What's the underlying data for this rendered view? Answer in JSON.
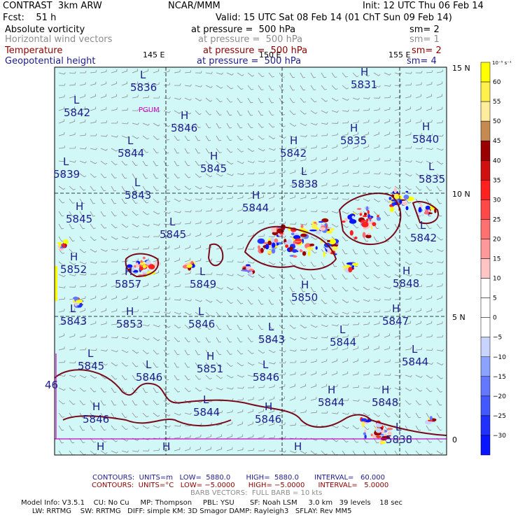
{
  "header": {
    "model": "CONTRAST  3km ARW",
    "org": "NCAR/MMM",
    "init": "Init: 12 UTC Thu 06 Feb 14",
    "fcst": "Fcst:    51 h",
    "valid": "Valid: 15 UTC Sat 08 Feb 14 (01 ChT Sun 09 Feb 14)",
    "fields": [
      {
        "name": "Absolute vorticity",
        "at": "at pressure =  500 hPa",
        "sm": "sm= 2",
        "color": "#000000"
      },
      {
        "name": "Horizontal wind vectors",
        "at": "at pressure =  500 hPa",
        "sm": "sm= 1",
        "color": "#8c8c8c"
      },
      {
        "name": "Temperature",
        "at": "at pressure =  500 hPa",
        "sm": "sm= 2",
        "color": "#8b0000"
      },
      {
        "name": "Geopotential height",
        "at": "at pressure =  500 hPa",
        "sm": "sm= 4",
        "color": "#1c1c8c"
      }
    ]
  },
  "map": {
    "background": "#d2f7f7",
    "lon_labels": [
      "145 E",
      "150 E",
      "155 E"
    ],
    "lat_labels": [
      "15 N",
      "10 N",
      "5 N",
      "0"
    ],
    "station": "PGUM",
    "height_labels": [
      {
        "hl": "L",
        "val": "5836"
      },
      {
        "hl": "H",
        "val": "5831"
      },
      {
        "hl": "L",
        "val": "5842"
      },
      {
        "hl": "H",
        "val": "5846"
      },
      {
        "hl": "L",
        "val": "5844"
      },
      {
        "hl": "H",
        "val": "5845"
      },
      {
        "hl": "H",
        "val": "5842"
      },
      {
        "hl": "H",
        "val": "5835"
      },
      {
        "hl": "H",
        "val": "5840"
      },
      {
        "hl": "L",
        "val": "5839"
      },
      {
        "hl": "L",
        "val": "5843"
      },
      {
        "hl": "L",
        "val": "5838"
      },
      {
        "hl": "L",
        "val": "5835"
      },
      {
        "hl": "H",
        "val": "5845"
      },
      {
        "hl": "H",
        "val": "5844"
      },
      {
        "hl": "L",
        "val": "5845"
      },
      {
        "hl": "L",
        "val": "5842"
      },
      {
        "hl": "H",
        "val": "5852"
      },
      {
        "hl": "H",
        "val": "5857"
      },
      {
        "hl": "L",
        "val": "5849"
      },
      {
        "hl": "H",
        "val": "5850"
      },
      {
        "hl": "H",
        "val": "5848"
      },
      {
        "hl": "L",
        "val": "5843"
      },
      {
        "hl": "H",
        "val": "5853"
      },
      {
        "hl": "L",
        "val": "5846"
      },
      {
        "hl": "L",
        "val": "5843"
      },
      {
        "hl": "L",
        "val": "5844"
      },
      {
        "hl": "H",
        "val": "5847"
      },
      {
        "hl": "L",
        "val": "5845"
      },
      {
        "hl": "H",
        "val": "5851"
      },
      {
        "hl": "L",
        "val": "5844"
      },
      {
        "hl": "L",
        "val": "5846"
      },
      {
        "hl": "L",
        "val": "5846"
      },
      {
        "hl": "H",
        "val": "5844"
      },
      {
        "hl": "H",
        "val": "5848"
      },
      {
        "hl": "H",
        "val": "5846"
      },
      {
        "hl": "L",
        "val": "5844"
      },
      {
        "hl": "H",
        "val": "5846"
      },
      {
        "hl": "L",
        "val": "5838"
      },
      {
        "hl": "",
        "val": "46"
      }
    ]
  },
  "colorbar": {
    "unit": "10⁻⁵ s⁻¹",
    "ticks": [
      "60",
      "55",
      "50",
      "45",
      "40",
      "35",
      "30",
      "25",
      "20",
      "15",
      "10",
      "5",
      "0",
      "−5",
      "−10",
      "−15",
      "−20",
      "−25",
      "−30"
    ],
    "colors": [
      "#ffff00",
      "#fff04c",
      "#ffec9c",
      "#c48a50",
      "#9a0000",
      "#d01010",
      "#ff2020",
      "#ff4848",
      "#ff7070",
      "#ff9898",
      "#ffc4c4",
      "#ffffff",
      "#ffffff",
      "#ffffff",
      "#c8d4ff",
      "#8ca2ff",
      "#6478ff",
      "#4458ff",
      "#2030ff",
      "#0a14ff"
    ]
  },
  "footer": {
    "line1": "CONTOURS:  UNITS=m   LOW=  5880.0       HIGH=  5880.0       INTERVAL=   60.000",
    "line2": "CONTOURS:  UNITS=°C   LOW= −5.0000      HIGH= −5.0000      INTERVAL=   5.0000",
    "line3": "BARB VECTORS:  FULL BARB = 10 kts",
    "line4": "Model Info: V3.5.1    CU: No Cu     MP: Thompson     PBL: YSU       SF: Noah LSM     3.0 km   39 levels    18 sec",
    "line5": "     LW: RRTMG    SW: RRTMG   DIFF: simple KM: 3D Smagor DAMP: Rayleigh3   SFLAY: Rev MM5"
  }
}
